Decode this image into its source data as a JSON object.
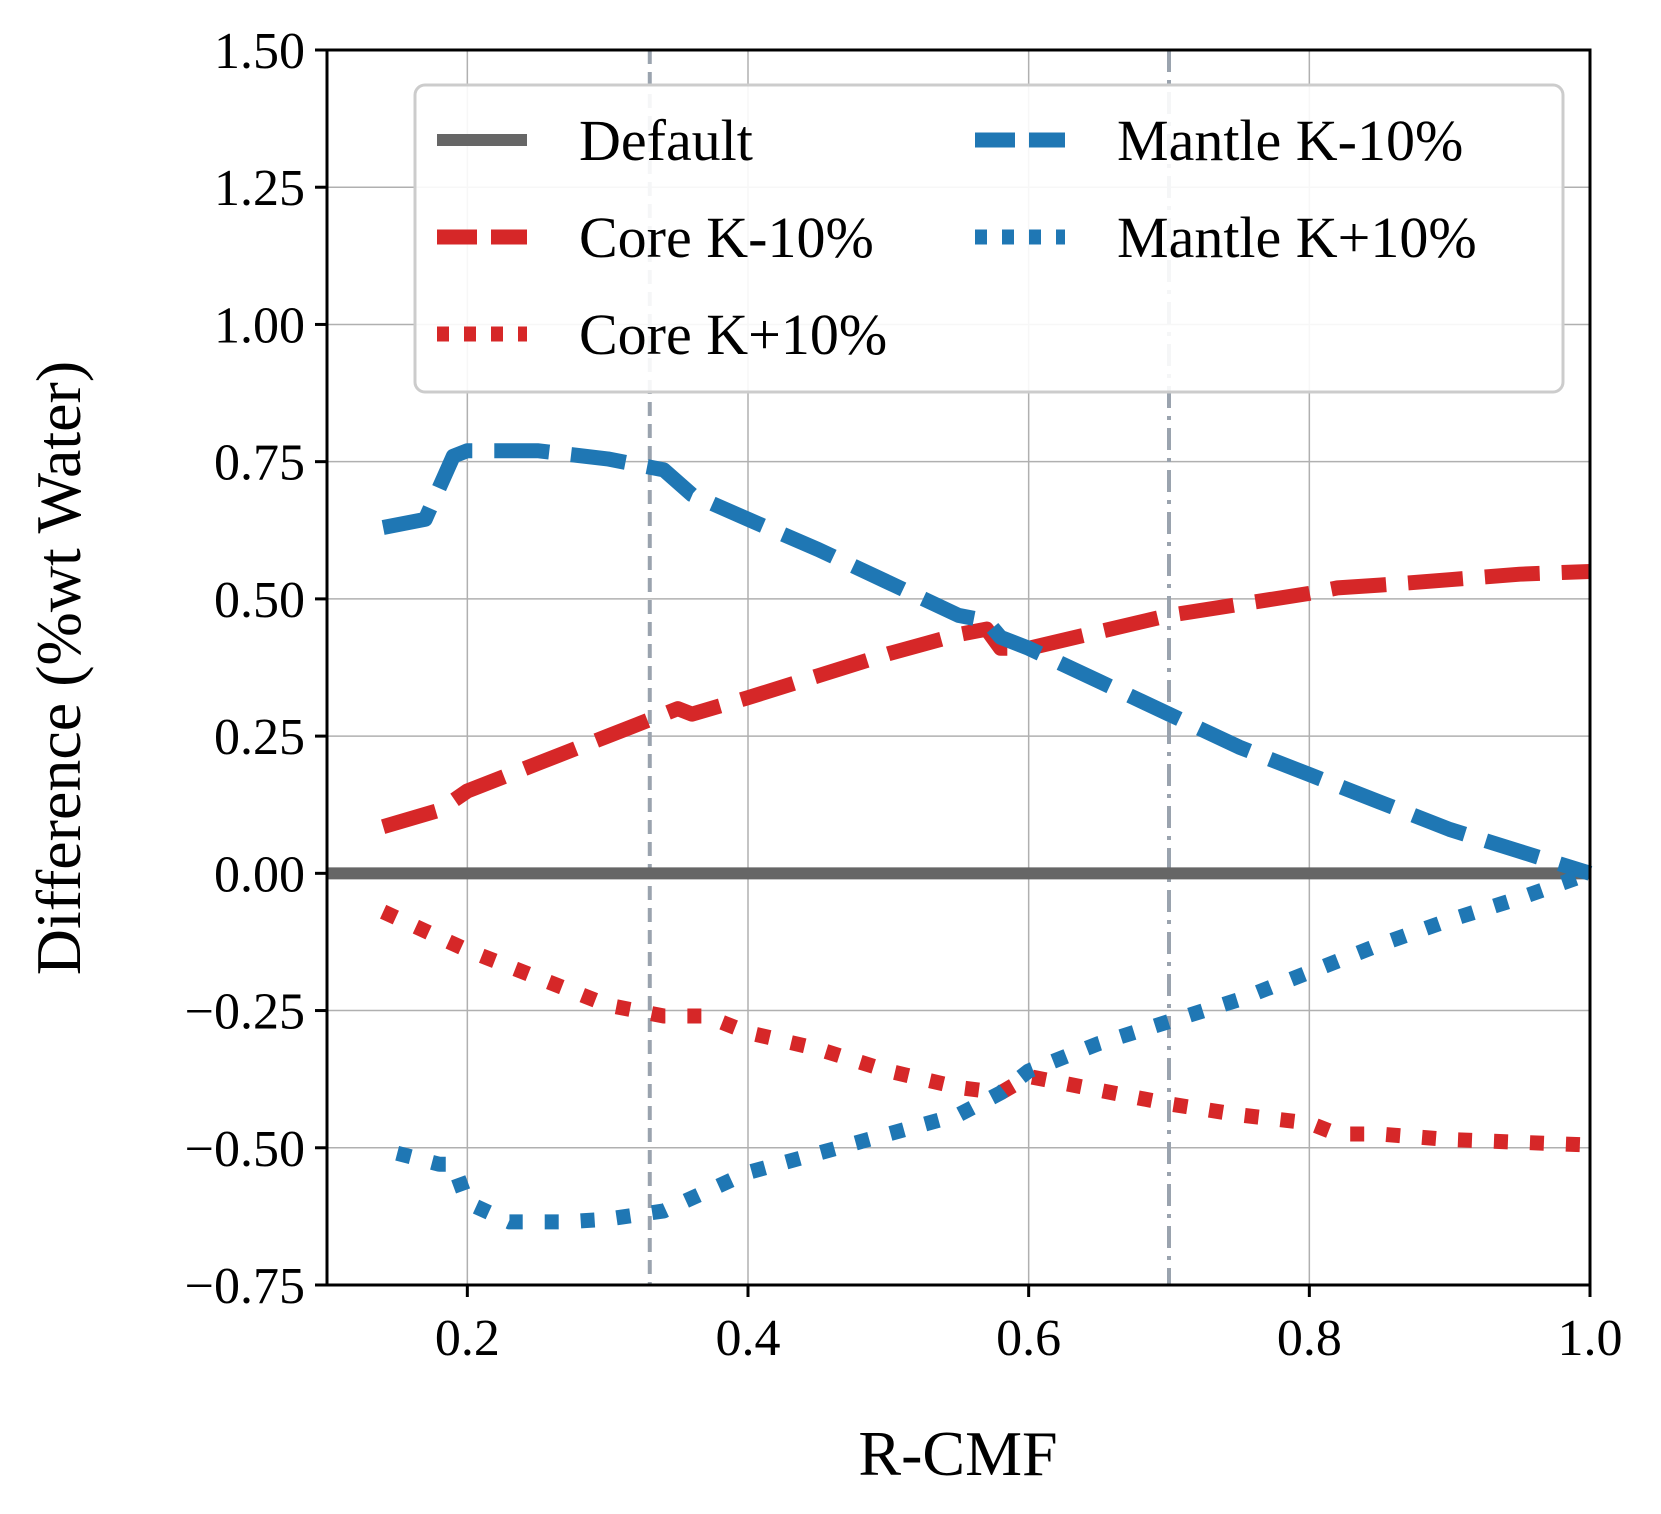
{
  "chart_data": {
    "type": "line",
    "title": "",
    "xlabel": "R-CMF",
    "ylabel": "Difference (%wt Water)",
    "xlim": [
      0.1,
      1.0
    ],
    "ylim": [
      -0.75,
      1.5
    ],
    "xticks": [
      0.2,
      0.4,
      0.6,
      0.8,
      1.0
    ],
    "xtick_labels": [
      "0.2",
      "0.4",
      "0.6",
      "0.8",
      "1.0"
    ],
    "yticks": [
      -0.75,
      -0.5,
      -0.25,
      0.0,
      0.25,
      0.5,
      0.75,
      1.0,
      1.25,
      1.5
    ],
    "ytick_labels": [
      "−0.75",
      "−0.50",
      "−0.25",
      "0.00",
      "0.25",
      "0.50",
      "0.75",
      "1.00",
      "1.25",
      "1.50"
    ],
    "grid": true,
    "legend_placement": "top-right",
    "vlines": [
      {
        "x": 0.33,
        "style": "dashed",
        "color": "#9aa3ae"
      },
      {
        "x": 0.7,
        "style": "dashdot",
        "color": "#9aa3ae"
      }
    ],
    "series": [
      {
        "name": "Default",
        "color": "#666666",
        "style": "solid",
        "x": [
          0.1,
          1.0
        ],
        "y": [
          0,
          0
        ]
      },
      {
        "name": "Core K-10%",
        "color": "#d62728",
        "style": "dashed",
        "x": [
          0.14,
          0.18,
          0.2,
          0.25,
          0.3,
          0.34,
          0.35,
          0.36,
          0.4,
          0.45,
          0.5,
          0.55,
          0.57,
          0.58,
          0.6,
          0.65,
          0.7,
          0.75,
          0.8,
          0.82,
          0.85,
          0.9,
          0.95,
          1.0
        ],
        "y": [
          0.085,
          0.115,
          0.15,
          0.2,
          0.25,
          0.29,
          0.3,
          0.29,
          0.32,
          0.36,
          0.4,
          0.435,
          0.445,
          0.41,
          0.41,
          0.44,
          0.47,
          0.49,
          0.51,
          0.52,
          0.525,
          0.535,
          0.545,
          0.55
        ]
      },
      {
        "name": "Core K+10%",
        "color": "#d62728",
        "style": "dotted",
        "x": [
          0.14,
          0.2,
          0.25,
          0.3,
          0.34,
          0.37,
          0.4,
          0.45,
          0.5,
          0.55,
          0.58,
          0.6,
          0.63,
          0.65,
          0.7,
          0.75,
          0.8,
          0.82,
          0.85,
          0.9,
          0.95,
          1.0
        ],
        "y": [
          -0.07,
          -0.14,
          -0.19,
          -0.24,
          -0.26,
          -0.26,
          -0.29,
          -0.32,
          -0.36,
          -0.39,
          -0.4,
          -0.37,
          -0.385,
          -0.395,
          -0.42,
          -0.44,
          -0.455,
          -0.475,
          -0.475,
          -0.485,
          -0.49,
          -0.495
        ]
      },
      {
        "name": "Mantle K-10%",
        "color": "#1f77b4",
        "style": "dashed",
        "x": [
          0.14,
          0.17,
          0.19,
          0.2,
          0.25,
          0.3,
          0.34,
          0.36,
          0.4,
          0.45,
          0.5,
          0.55,
          0.57,
          0.58,
          0.6,
          0.65,
          0.7,
          0.75,
          0.8,
          0.82,
          0.85,
          0.9,
          0.95,
          1.0
        ],
        "y": [
          0.63,
          0.645,
          0.76,
          0.77,
          0.77,
          0.755,
          0.735,
          0.69,
          0.645,
          0.59,
          0.53,
          0.47,
          0.46,
          0.43,
          0.41,
          0.35,
          0.29,
          0.23,
          0.18,
          0.16,
          0.13,
          0.08,
          0.04,
          0.0
        ]
      },
      {
        "name": "Mantle K+10%",
        "color": "#1f77b4",
        "style": "dotted",
        "x": [
          0.15,
          0.18,
          0.19,
          0.2,
          0.23,
          0.27,
          0.3,
          0.34,
          0.37,
          0.4,
          0.45,
          0.5,
          0.55,
          0.58,
          0.6,
          0.65,
          0.7,
          0.75,
          0.8,
          0.85,
          0.9,
          0.95,
          1.0
        ],
        "y": [
          -0.51,
          -0.53,
          -0.53,
          -0.6,
          -0.635,
          -0.635,
          -0.63,
          -0.615,
          -0.58,
          -0.545,
          -0.51,
          -0.475,
          -0.44,
          -0.4,
          -0.36,
          -0.31,
          -0.27,
          -0.23,
          -0.18,
          -0.13,
          -0.085,
          -0.045,
          0.0
        ]
      }
    ]
  }
}
